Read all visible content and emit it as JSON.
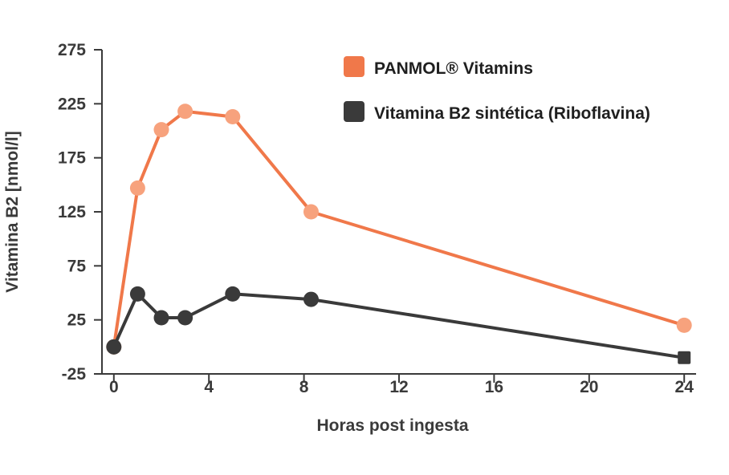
{
  "chart_data": {
    "type": "line",
    "title": "",
    "xlabel": "Horas post ingesta",
    "ylabel": "Vitamina B2 [nmol/l]",
    "xlim": [
      -0.5,
      24.5
    ],
    "ylim": [
      -25,
      275
    ],
    "xticks": [
      0,
      4,
      8,
      12,
      16,
      20,
      24
    ],
    "yticks": [
      -25,
      25,
      75,
      125,
      175,
      225,
      275
    ],
    "grid": false,
    "legend": "top-right",
    "series": [
      {
        "name": "PANMOL® Vitamins",
        "line_color": "#f0784a",
        "marker_color": "#f7a27d",
        "legend_color": "#f0784a",
        "marker": "circle",
        "x": [
          0,
          1,
          2,
          3,
          5,
          8.3,
          24
        ],
        "y": [
          0,
          147,
          201,
          218,
          213,
          125,
          20
        ]
      },
      {
        "name": "Vitamina B2 sintética (Riboflavina)",
        "line_color": "#3a3a3a",
        "marker_color": "#3a3a3a",
        "legend_color": "#3a3a3a",
        "marker": "circle",
        "last_marker": "square",
        "x": [
          0,
          1,
          2,
          3,
          5,
          8.3,
          24
        ],
        "y": [
          0,
          49,
          27,
          27,
          49,
          44,
          -10
        ]
      }
    ]
  }
}
